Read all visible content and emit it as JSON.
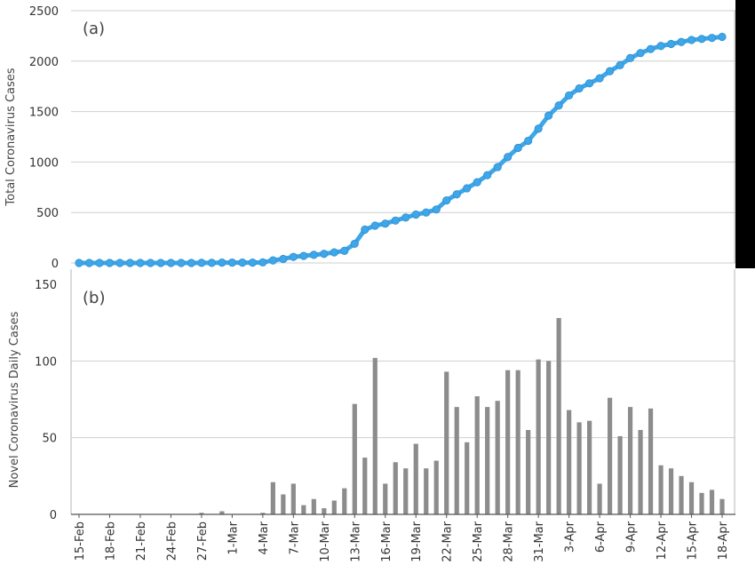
{
  "chart_data": [
    {
      "type": "line",
      "panel_label": "(a)",
      "ylabel": "Total Coronavirus Cases",
      "ylim": [
        0,
        2500
      ],
      "yticks": [
        0,
        500,
        1000,
        1500,
        2000,
        2500
      ],
      "grid": true,
      "x": [
        "15-Feb",
        "16-Feb",
        "17-Feb",
        "18-Feb",
        "19-Feb",
        "20-Feb",
        "21-Feb",
        "22-Feb",
        "23-Feb",
        "24-Feb",
        "25-Feb",
        "26-Feb",
        "27-Feb",
        "28-Feb",
        "29-Feb",
        "1-Mar",
        "2-Mar",
        "3-Mar",
        "4-Mar",
        "5-Mar",
        "6-Mar",
        "7-Mar",
        "8-Mar",
        "9-Mar",
        "10-Mar",
        "11-Mar",
        "12-Mar",
        "13-Mar",
        "14-Mar",
        "15-Mar",
        "16-Mar",
        "17-Mar",
        "18-Mar",
        "19-Mar",
        "20-Mar",
        "21-Mar",
        "22-Mar",
        "23-Mar",
        "24-Mar",
        "25-Mar",
        "26-Mar",
        "27-Mar",
        "28-Mar",
        "29-Mar",
        "30-Mar",
        "31-Mar",
        "1-Apr",
        "2-Apr",
        "3-Apr",
        "4-Apr",
        "5-Apr",
        "6-Apr",
        "7-Apr",
        "8-Apr",
        "9-Apr",
        "10-Apr",
        "11-Apr",
        "12-Apr",
        "13-Apr",
        "14-Apr",
        "15-Apr",
        "16-Apr",
        "17-Apr",
        "18-Apr"
      ],
      "series": [
        {
          "color": "#3fa6e8",
          "values": [
            0,
            0,
            0,
            0,
            0,
            0,
            0,
            0,
            0,
            0,
            0,
            0,
            1,
            1,
            3,
            3,
            3,
            3,
            6,
            25,
            40,
            60,
            70,
            80,
            90,
            105,
            120,
            190,
            330,
            370,
            390,
            420,
            450,
            480,
            500,
            530,
            620,
            680,
            740,
            800,
            870,
            950,
            1050,
            1140,
            1210,
            1330,
            1460,
            1560,
            1660,
            1730,
            1780,
            1830,
            1900,
            1960,
            2030,
            2080,
            2120,
            2150,
            2170,
            2190,
            2210,
            2220,
            2230,
            2240
          ]
        }
      ]
    },
    {
      "type": "bar",
      "panel_label": "(b)",
      "ylabel": "Novel Coronavirus Daily Cases",
      "ylim": [
        0,
        150
      ],
      "yticks": [
        0,
        50,
        100,
        150
      ],
      "grid": true,
      "categories": [
        "15-Feb",
        "16-Feb",
        "17-Feb",
        "18-Feb",
        "19-Feb",
        "20-Feb",
        "21-Feb",
        "22-Feb",
        "23-Feb",
        "24-Feb",
        "25-Feb",
        "26-Feb",
        "27-Feb",
        "28-Feb",
        "29-Feb",
        "1-Mar",
        "2-Mar",
        "3-Mar",
        "4-Mar",
        "5-Mar",
        "6-Mar",
        "7-Mar",
        "8-Mar",
        "9-Mar",
        "10-Mar",
        "11-Mar",
        "12-Mar",
        "13-Mar",
        "14-Mar",
        "15-Mar",
        "16-Mar",
        "17-Mar",
        "18-Mar",
        "19-Mar",
        "20-Mar",
        "21-Mar",
        "22-Mar",
        "23-Mar",
        "24-Mar",
        "25-Mar",
        "26-Mar",
        "27-Mar",
        "28-Mar",
        "29-Mar",
        "30-Mar",
        "31-Mar",
        "1-Apr",
        "2-Apr",
        "3-Apr",
        "4-Apr",
        "5-Apr",
        "6-Apr",
        "7-Apr",
        "8-Apr",
        "9-Apr",
        "10-Apr",
        "11-Apr",
        "12-Apr",
        "13-Apr",
        "14-Apr",
        "15-Apr",
        "16-Apr",
        "17-Apr",
        "18-Apr"
      ],
      "xticks": [
        "15-Feb",
        "18-Feb",
        "21-Feb",
        "24-Feb",
        "27-Feb",
        "1-Mar",
        "4-Mar",
        "7-Mar",
        "10-Mar",
        "13-Mar",
        "16-Mar",
        "19-Mar",
        "22-Mar",
        "25-Mar",
        "28-Mar",
        "31-Mar",
        "3-Apr",
        "6-Apr",
        "9-Apr",
        "12-Apr",
        "15-Apr",
        "18-Apr"
      ],
      "series": [
        {
          "color": "#8c8c8c",
          "values": [
            0,
            0,
            0,
            0,
            0,
            0,
            0,
            0,
            0,
            0,
            0,
            0,
            1,
            0,
            2,
            0,
            0,
            0,
            1,
            21,
            13,
            20,
            6,
            10,
            4,
            9,
            17,
            72,
            37,
            102,
            20,
            34,
            30,
            46,
            30,
            35,
            93,
            70,
            47,
            77,
            70,
            74,
            94,
            94,
            55,
            101,
            100,
            128,
            68,
            60,
            61,
            20,
            76,
            51,
            70,
            55,
            69,
            32,
            30,
            25,
            21,
            14,
            16,
            10
          ]
        }
      ]
    }
  ]
}
